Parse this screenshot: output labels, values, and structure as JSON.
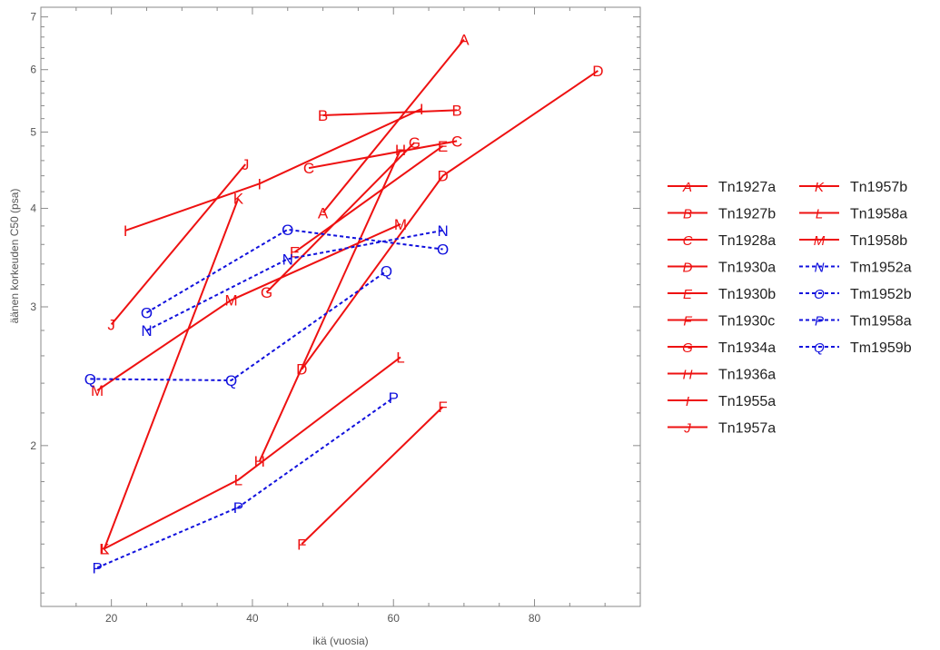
{
  "chart_data": {
    "type": "line",
    "xlabel": "ikä (vuosia)",
    "ylabel": "äänen korkeuden C50 (psa)",
    "xlim": [
      10,
      95
    ],
    "ylim": [
      1.25,
      7.2
    ],
    "y_scale": "log",
    "x_ticks": [
      20,
      40,
      60,
      80
    ],
    "y_ticks": [
      2,
      3,
      4,
      5,
      6,
      7
    ],
    "grid": false,
    "legend_position": "right",
    "colors": {
      "Tn": "#ee1111",
      "Tm": "#1111dd"
    },
    "series": [
      {
        "name": "Tn1927a",
        "marker": "A",
        "style": "solid",
        "color": "#ee1111",
        "points": [
          [
            50,
            3.95
          ],
          [
            70,
            6.55
          ]
        ]
      },
      {
        "name": "Tn1927b",
        "marker": "B",
        "style": "solid",
        "color": "#ee1111",
        "points": [
          [
            50,
            5.25
          ],
          [
            69,
            5.33
          ]
        ]
      },
      {
        "name": "Tn1928a",
        "marker": "C",
        "style": "solid",
        "color": "#ee1111",
        "points": [
          [
            48,
            4.5
          ],
          [
            69,
            4.87
          ]
        ]
      },
      {
        "name": "Tn1930a",
        "marker": "D",
        "style": "solid",
        "color": "#ee1111",
        "points": [
          [
            47,
            2.5
          ],
          [
            67,
            4.4
          ],
          [
            89,
            5.98
          ]
        ]
      },
      {
        "name": "Tn1930b",
        "marker": "E",
        "style": "solid",
        "color": "#ee1111",
        "points": [
          [
            46,
            3.52
          ],
          [
            67,
            4.8
          ]
        ]
      },
      {
        "name": "Tn1930c",
        "marker": "F",
        "style": "solid",
        "color": "#ee1111",
        "points": [
          [
            47,
            1.5
          ],
          [
            67,
            2.24
          ]
        ]
      },
      {
        "name": "Tn1934a",
        "marker": "G",
        "style": "solid",
        "color": "#ee1111",
        "points": [
          [
            42,
            3.13
          ],
          [
            63,
            4.85
          ]
        ]
      },
      {
        "name": "Tn1936a",
        "marker": "H",
        "style": "solid",
        "color": "#ee1111",
        "points": [
          [
            41,
            1.91
          ],
          [
            61,
            4.75
          ]
        ]
      },
      {
        "name": "Tn1955a",
        "marker": "I",
        "style": "solid",
        "color": "#ee1111",
        "points": [
          [
            22,
            3.75
          ],
          [
            41,
            4.3
          ],
          [
            64,
            5.35
          ]
        ]
      },
      {
        "name": "Tn1957a",
        "marker": "J",
        "style": "solid",
        "color": "#ee1111",
        "points": [
          [
            20,
            2.85
          ],
          [
            39,
            4.55
          ]
        ]
      },
      {
        "name": "Tn1957b",
        "marker": "K",
        "style": "solid",
        "color": "#ee1111",
        "points": [
          [
            19,
            1.48
          ],
          [
            38,
            4.12
          ]
        ]
      },
      {
        "name": "Tn1958a",
        "marker": "L",
        "style": "solid",
        "color": "#ee1111",
        "points": [
          [
            19,
            1.48
          ],
          [
            38,
            1.81
          ],
          [
            61,
            2.59
          ]
        ]
      },
      {
        "name": "Tn1958b",
        "marker": "M",
        "style": "solid",
        "color": "#ee1111",
        "points": [
          [
            18,
            2.35
          ],
          [
            37,
            3.06
          ],
          [
            61,
            3.82
          ]
        ]
      },
      {
        "name": "Tm1952a",
        "marker": "N",
        "style": "dashed",
        "color": "#1111dd",
        "points": [
          [
            25,
            2.8
          ],
          [
            45,
            3.45
          ],
          [
            67,
            3.75
          ]
        ]
      },
      {
        "name": "Tm1952b",
        "marker": "O",
        "style": "dashed",
        "color": "#1111dd",
        "points": [
          [
            25,
            2.95
          ],
          [
            45,
            3.76
          ],
          [
            67,
            3.55
          ]
        ]
      },
      {
        "name": "Tm1958a",
        "marker": "P",
        "style": "dashed",
        "color": "#1111dd",
        "points": [
          [
            18,
            1.4
          ],
          [
            38,
            1.67
          ],
          [
            60,
            2.3
          ]
        ]
      },
      {
        "name": "Tm1959b",
        "marker": "Q",
        "style": "dashed",
        "color": "#1111dd",
        "points": [
          [
            17,
            2.43
          ],
          [
            37,
            2.42
          ],
          [
            59,
            3.33
          ]
        ]
      }
    ]
  }
}
